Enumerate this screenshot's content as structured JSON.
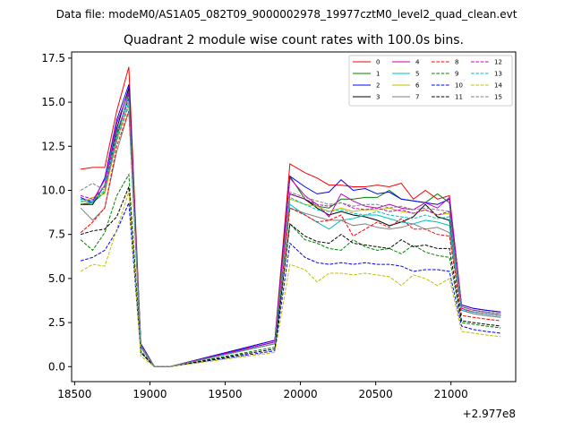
{
  "suptitle": "Data file: modeM0/AS1A05_082T09_9000002978_19977cztM0_level2_quad_clean.evt",
  "chart_data": {
    "type": "line",
    "title": "Quadrant 2 module wise count rates with 100.0s bins.",
    "xlabel": "",
    "ylabel": "",
    "x_offset_text": "+2.977e8",
    "xlim": [
      18480,
      21430
    ],
    "ylim": [
      -0.85,
      17.85
    ],
    "xticks": [
      18500,
      19000,
      19500,
      20000,
      20500,
      21000
    ],
    "xtick_labels": [
      "18500",
      "19000",
      "19500",
      "20000",
      "20500",
      "21000"
    ],
    "yticks": [
      0.0,
      2.5,
      5.0,
      7.5,
      10.0,
      12.5,
      15.0,
      17.5
    ],
    "ytick_labels": [
      "0.0",
      "2.5",
      "5.0",
      "7.5",
      "10.0",
      "12.5",
      "15.0",
      "17.5"
    ],
    "legend_location": "upper right",
    "x": [
      18540,
      18620,
      18700,
      18780,
      18860,
      18940,
      19030,
      19130,
      19830,
      19930,
      20030,
      20110,
      20190,
      20270,
      20350,
      20430,
      20510,
      20590,
      20670,
      20750,
      20830,
      20910,
      20990,
      21070,
      21150,
      21230,
      21330
    ],
    "series": [
      {
        "name": "0",
        "color": "#ff0000",
        "dash": "solid",
        "values": [
          11.2,
          11.3,
          11.3,
          14.5,
          17.0,
          1.3,
          0.0,
          0.0,
          1.5,
          11.5,
          11.0,
          10.7,
          10.3,
          10.3,
          10.2,
          10.2,
          10.3,
          10.2,
          10.4,
          9.5,
          10.0,
          9.5,
          9.7,
          3.5,
          3.3,
          3.2,
          3.1
        ]
      },
      {
        "name": "1",
        "color": "#008000",
        "dash": "solid",
        "values": [
          9.2,
          9.3,
          9.9,
          13.0,
          15.5,
          1.2,
          0.0,
          0.0,
          1.4,
          10.8,
          9.5,
          9.1,
          9.0,
          9.5,
          9.5,
          9.6,
          9.6,
          10.0,
          9.5,
          9.4,
          9.3,
          9.8,
          9.3,
          3.4,
          3.2,
          3.1,
          3.0
        ]
      },
      {
        "name": "2",
        "color": "#0000ff",
        "dash": "solid",
        "values": [
          9.6,
          9.3,
          10.7,
          14.0,
          16.0,
          1.3,
          0.0,
          0.0,
          1.5,
          10.8,
          10.2,
          9.8,
          9.9,
          10.6,
          10.0,
          10.1,
          9.8,
          9.9,
          9.5,
          9.4,
          9.3,
          9.2,
          9.5,
          3.5,
          3.3,
          3.2,
          3.1
        ]
      },
      {
        "name": "3",
        "color": "#000000",
        "dash": "solid",
        "values": [
          9.2,
          9.2,
          10.3,
          13.5,
          15.8,
          1.2,
          0.0,
          0.0,
          1.4,
          9.8,
          9.5,
          9.0,
          8.6,
          8.8,
          8.6,
          8.5,
          8.3,
          8.0,
          8.2,
          8.5,
          9.2,
          8.5,
          8.3,
          3.3,
          3.1,
          3.0,
          2.9
        ]
      },
      {
        "name": "4",
        "color": "#bf00bf",
        "dash": "solid",
        "values": [
          9.5,
          9.4,
          10.6,
          13.8,
          15.6,
          1.2,
          0.0,
          0.0,
          1.4,
          10.7,
          9.7,
          9.2,
          8.5,
          9.8,
          9.4,
          9.1,
          9.0,
          9.2,
          9.0,
          8.9,
          9.3,
          9.0,
          9.6,
          3.4,
          3.2,
          3.1,
          3.0
        ]
      },
      {
        "name": "5",
        "color": "#00bfbf",
        "dash": "solid",
        "values": [
          9.4,
          9.3,
          10.3,
          13.3,
          15.3,
          1.2,
          0.0,
          0.0,
          1.3,
          9.2,
          8.6,
          8.2,
          7.8,
          8.3,
          8.4,
          8.6,
          8.6,
          8.4,
          8.2,
          8.1,
          8.3,
          8.2,
          8.0,
          3.2,
          3.0,
          2.9,
          2.8
        ]
      },
      {
        "name": "6",
        "color": "#bfbf00",
        "dash": "solid",
        "values": [
          9.3,
          9.6,
          9.8,
          12.8,
          15.0,
          1.1,
          0.0,
          0.0,
          1.3,
          9.5,
          9.2,
          9.1,
          8.8,
          9.0,
          8.8,
          8.9,
          8.9,
          9.0,
          8.8,
          8.7,
          8.9,
          8.6,
          8.7,
          3.3,
          3.1,
          3.0,
          2.9
        ]
      },
      {
        "name": "7",
        "color": "#808080",
        "dash": "solid",
        "values": [
          9.0,
          8.3,
          9.0,
          12.2,
          14.5,
          1.1,
          0.0,
          0.0,
          1.3,
          9.0,
          8.7,
          8.5,
          8.3,
          8.3,
          8.0,
          8.1,
          7.9,
          7.8,
          7.9,
          8.1,
          7.8,
          7.9,
          7.6,
          3.2,
          3.0,
          2.9,
          2.8
        ]
      },
      {
        "name": "8",
        "color": "#ff0000",
        "dash": "dashed",
        "values": [
          7.6,
          8.2,
          9.0,
          12.5,
          14.5,
          1.1,
          0.0,
          0.0,
          1.3,
          9.0,
          8.6,
          8.2,
          8.3,
          8.6,
          7.4,
          7.8,
          8.2,
          7.9,
          8.4,
          7.8,
          7.8,
          7.5,
          7.4,
          2.9,
          2.8,
          2.7,
          2.6
        ]
      },
      {
        "name": "9",
        "color": "#008000",
        "dash": "dashed",
        "values": [
          7.2,
          6.6,
          7.6,
          9.7,
          10.9,
          0.9,
          0.0,
          0.0,
          1.1,
          8.1,
          7.2,
          7.0,
          6.7,
          6.6,
          7.2,
          6.8,
          6.6,
          6.7,
          6.4,
          6.9,
          6.5,
          6.3,
          6.2,
          2.5,
          2.4,
          2.3,
          2.2
        ]
      },
      {
        "name": "10",
        "color": "#0000ff",
        "dash": "dashed",
        "values": [
          6.0,
          6.2,
          6.6,
          7.7,
          9.3,
          0.8,
          0.0,
          0.0,
          0.9,
          7.0,
          6.2,
          5.9,
          5.8,
          5.9,
          5.8,
          5.9,
          5.8,
          5.8,
          5.7,
          5.4,
          5.5,
          5.5,
          5.4,
          2.3,
          2.1,
          2.0,
          1.9
        ]
      },
      {
        "name": "11",
        "color": "#000000",
        "dash": "dashed",
        "values": [
          7.5,
          7.7,
          7.8,
          8.5,
          10.2,
          0.8,
          0.0,
          0.0,
          1.0,
          8.1,
          7.4,
          7.1,
          7.0,
          7.5,
          7.0,
          6.9,
          6.8,
          6.7,
          7.2,
          6.8,
          6.9,
          6.7,
          6.7,
          2.6,
          2.5,
          2.4,
          2.3
        ]
      },
      {
        "name": "12",
        "color": "#bf00bf",
        "dash": "dashed",
        "values": [
          9.7,
          9.5,
          10.2,
          13.2,
          15.2,
          1.2,
          0.0,
          0.0,
          1.4,
          9.8,
          9.5,
          9.2,
          9.1,
          9.3,
          9.0,
          8.9,
          9.0,
          8.8,
          8.9,
          8.7,
          8.9,
          8.6,
          8.8,
          3.3,
          3.1,
          3.0,
          2.9
        ]
      },
      {
        "name": "13",
        "color": "#00bfbf",
        "dash": "dashed",
        "values": [
          9.5,
          9.4,
          10.0,
          13.0,
          15.0,
          1.1,
          0.0,
          0.0,
          1.3,
          9.6,
          9.2,
          8.9,
          8.8,
          8.9,
          8.7,
          8.6,
          8.8,
          8.6,
          8.5,
          8.4,
          8.6,
          8.4,
          8.5,
          3.2,
          3.1,
          3.0,
          2.9
        ]
      },
      {
        "name": "14",
        "color": "#bfbf00",
        "dash": "dashed",
        "values": [
          5.4,
          5.8,
          5.7,
          7.8,
          9.9,
          0.6,
          0.0,
          0.0,
          0.8,
          5.8,
          5.5,
          4.8,
          5.3,
          5.3,
          5.2,
          5.3,
          5.2,
          5.1,
          4.6,
          5.2,
          5.0,
          4.6,
          5.0,
          2.0,
          1.9,
          1.8,
          1.7
        ]
      },
      {
        "name": "15",
        "color": "#808080",
        "dash": "dashed",
        "values": [
          10.0,
          10.4,
          10.0,
          12.8,
          14.8,
          1.2,
          0.0,
          0.0,
          1.3,
          9.9,
          9.6,
          9.4,
          9.2,
          9.3,
          9.1,
          9.2,
          9.2,
          9.0,
          9.1,
          8.9,
          9.0,
          8.9,
          8.8,
          3.4,
          3.2,
          3.1,
          3.0
        ]
      }
    ]
  }
}
